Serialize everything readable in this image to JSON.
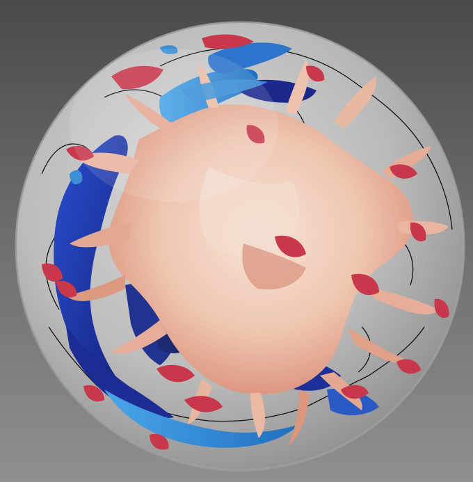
{
  "scene": {
    "description_visible_text": "",
    "background": {
      "top_color": "#4a4a4a",
      "bottom_color": "#8f8f8f"
    },
    "globe": {
      "shell_color": "#c9c9c9",
      "shell_opacity": 0.55,
      "coastline_color": "#111111"
    },
    "layers": {
      "cold_dark": "#1b2a8a",
      "cold_mid": "#2747b8",
      "cold_light": "#3a8fd6",
      "hot_core": "#f3d6c6",
      "hot_mid": "#e7a58d",
      "hot_edge": "#c8374a",
      "shadow_holes": "#1d2a70"
    }
  }
}
